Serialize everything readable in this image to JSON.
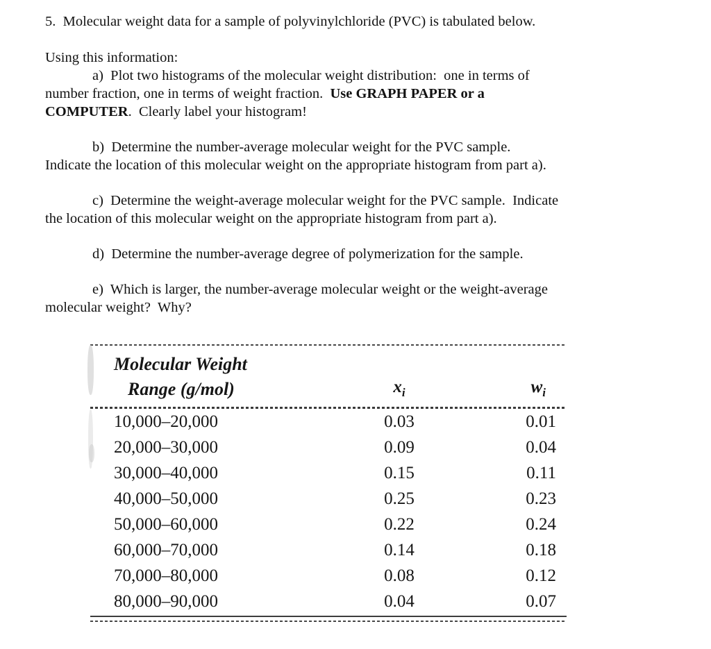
{
  "page": {
    "title": "5.  Molecular weight data for a sample of polyvinylchloride (PVC) is tabulated below.",
    "intro": "Using this information:",
    "parts": {
      "a": {
        "pre": "a)  Plot two histograms of the molecular weight distribution:  one in terms of\nnumber fraction, one in terms of weight fraction.  ",
        "bold": "Use GRAPH PAPER or a\nCOMPUTER",
        "post": ".  Clearly label your histogram!"
      },
      "b": "b)  Determine the number-average molecular weight for the PVC sample.\nIndicate the location of this molecular weight on the appropriate histogram from part a).",
      "c": "c)  Determine the weight-average molecular weight for the PVC sample.  Indicate\nthe location of this molecular weight on the appropriate histogram from part a).",
      "d": "d)  Determine the number-average degree of polymerization for the sample.",
      "e": "e)  Which is larger, the number-average molecular weight or the weight-average\nmolecular weight?  Why?"
    }
  },
  "table": {
    "header": {
      "range_line1": "Molecular Weight",
      "range_line2": "Range (g/mol)",
      "x_base": "x",
      "x_sub": "i",
      "w_base": "w",
      "w_sub": "i"
    },
    "rows": [
      {
        "range": "10,000–20,000",
        "x": "0.03",
        "w": "0.01"
      },
      {
        "range": "20,000–30,000",
        "x": "0.09",
        "w": "0.04"
      },
      {
        "range": "30,000–40,000",
        "x": "0.15",
        "w": "0.11"
      },
      {
        "range": "40,000–50,000",
        "x": "0.25",
        "w": "0.23"
      },
      {
        "range": "50,000–60,000",
        "x": "0.22",
        "w": "0.24"
      },
      {
        "range": "60,000–70,000",
        "x": "0.14",
        "w": "0.18"
      },
      {
        "range": "70,000–80,000",
        "x": "0.08",
        "w": "0.12"
      },
      {
        "range": "80,000–90,000",
        "x": "0.04",
        "w": "0.07"
      }
    ]
  }
}
